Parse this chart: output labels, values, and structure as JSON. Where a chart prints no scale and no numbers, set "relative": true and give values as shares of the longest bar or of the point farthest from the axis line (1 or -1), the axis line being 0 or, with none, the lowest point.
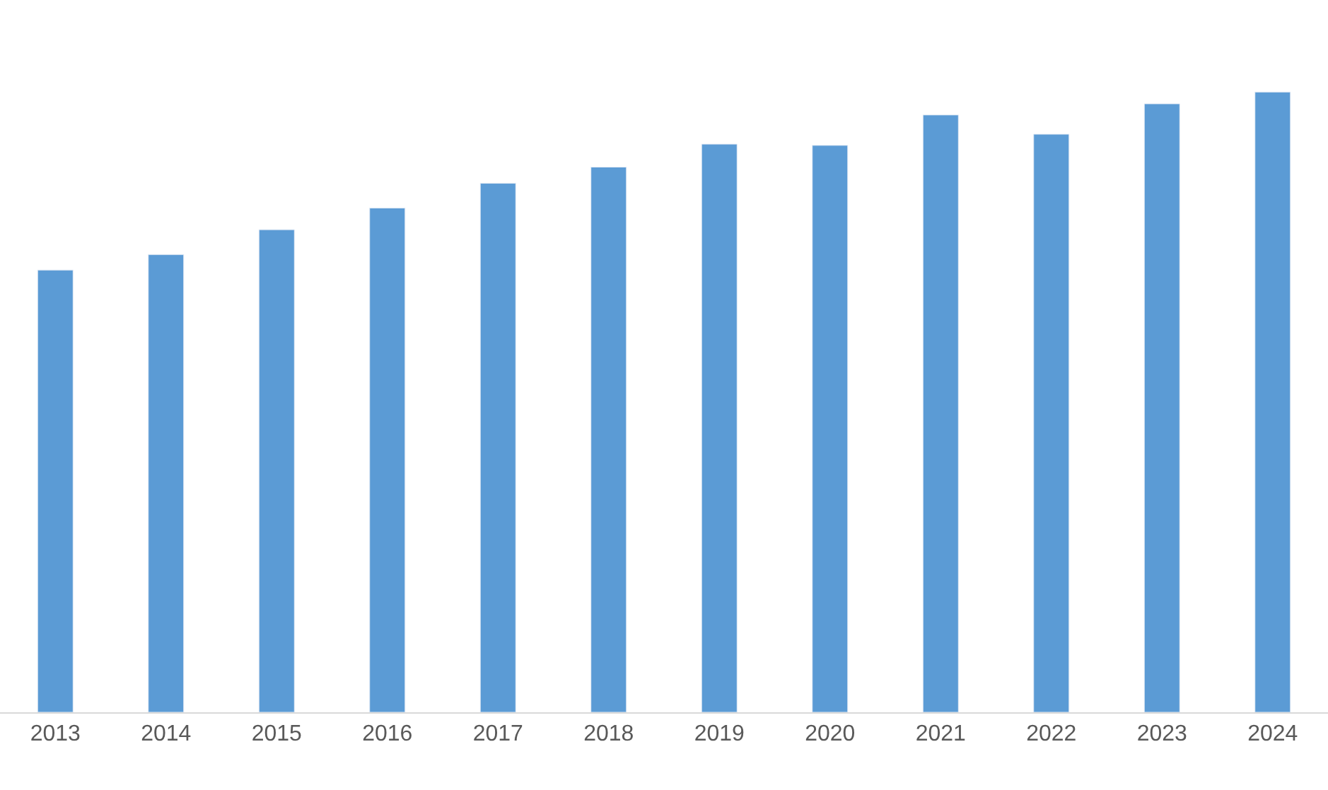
{
  "chart_data": {
    "type": "bar",
    "relative": true,
    "color": "#5b9bd5",
    "categories": [
      "2013",
      "2014",
      "2015",
      "2016",
      "2017",
      "2018",
      "2019",
      "2020",
      "2021",
      "2022",
      "2023",
      "2024"
    ],
    "values": [
      0.713,
      0.738,
      0.778,
      0.813,
      0.853,
      0.879,
      0.916,
      0.914,
      0.963,
      0.932,
      0.981,
      1
    ],
    "legend": false
  }
}
